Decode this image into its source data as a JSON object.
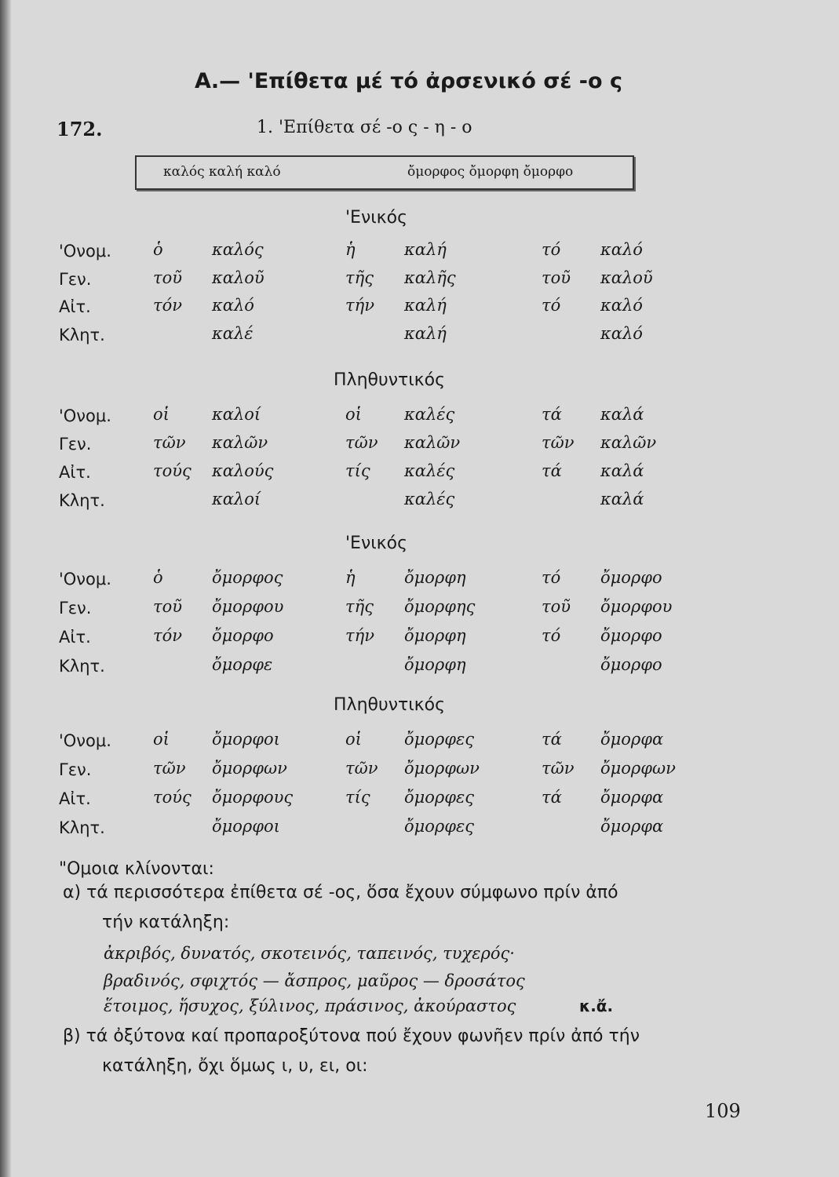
{
  "heading": "Α.— 'Επίθετα μέ τό ἀρσενικό σέ -ο ς",
  "section_number": "172.",
  "subheading": "1. 'Επίθετα σέ -ο ς - η - ο",
  "box": {
    "left": "καλός καλή καλό",
    "right": "ὄμορφος ὄμορφη ὄμορφο"
  },
  "case_labels": [
    "'Ονομ.",
    "Γεν.",
    "Αἰτ.",
    "Κλητ."
  ],
  "blocks": [
    {
      "heading": "'Ενικός",
      "rows": [
        [
          "ὁ",
          "καλός",
          "ἡ",
          "καλή",
          "τό",
          "καλό"
        ],
        [
          "τοῦ",
          "καλοῦ",
          "τῆς",
          "καλῆς",
          "τοῦ",
          "καλοῦ"
        ],
        [
          "τόν",
          "καλό",
          "τήν",
          "καλή",
          "τό",
          "καλό"
        ],
        [
          "",
          "καλέ",
          "",
          "καλή",
          "",
          "καλό"
        ]
      ]
    },
    {
      "heading": "Πληθυντικός",
      "rows": [
        [
          "οἱ",
          "καλοί",
          "οἱ",
          "καλές",
          "τά",
          "καλά"
        ],
        [
          "τῶν",
          "καλῶν",
          "τῶν",
          "καλῶν",
          "τῶν",
          "καλῶν"
        ],
        [
          "τούς",
          "καλούς",
          "τίς",
          "καλές",
          "τά",
          "καλά"
        ],
        [
          "",
          "καλοί",
          "",
          "καλές",
          "",
          "καλά"
        ]
      ]
    },
    {
      "heading": "'Ενικός",
      "rows": [
        [
          "ὁ",
          "ὄμορφος",
          "ἡ",
          "ὄμορφη",
          "τό",
          "ὄμορφο"
        ],
        [
          "τοῦ",
          "ὄμορφου",
          "τῆς",
          "ὄμορφης",
          "τοῦ",
          "ὄμορφου"
        ],
        [
          "τόν",
          "ὄμορφο",
          "τήν",
          "ὄμορφη",
          "τό",
          "ὄμορφο"
        ],
        [
          "",
          "ὄμορφε",
          "",
          "ὄμορφη",
          "",
          "ὄμορφο"
        ]
      ]
    },
    {
      "heading": "Πληθυντικός",
      "rows": [
        [
          "οἱ",
          "ὄμορφοι",
          "οἱ",
          "ὄμορφες",
          "τά",
          "ὄμορφα"
        ],
        [
          "τῶν",
          "ὄμορφων",
          "τῶν",
          "ὄμορφων",
          "τῶν",
          "ὄμορφων"
        ],
        [
          "τούς",
          "ὄμορφους",
          "τίς",
          "ὄμορφες",
          "τά",
          "ὄμορφα"
        ],
        [
          "",
          "ὄμορφοι",
          "",
          "ὄμορφες",
          "",
          "ὄμορφα"
        ]
      ]
    }
  ],
  "notes": {
    "intro": "\"Ομοια κλίνονται:",
    "a_line1": "α) τά περισσότερα ἐπίθετα σέ -ος, ὅσα ἔχουν σύμφωνο πρίν ἀπό",
    "a_line2": "τήν κατάληξη:",
    "a_ex1": "ἀκριβός, δυνατός, σκοτεινός, ταπεινός, τυχερός·",
    "a_ex2": "βραδινός, σφιχτός — ἄσπρος, μαῦρος — δροσάτος",
    "a_ex3": "ἕτοιμος, ἥσυχος, ξύλινος, πράσινος, ἀκούραστος",
    "a_ex3_tail": "κ.ἄ.",
    "b_line1": "β) τά ὀξύτονα καί προπαροξύτονα πού ἔχουν φωνῆεν πρίν ἀπό τήν",
    "b_line2": "κατάληξη, ὄχι ὅμως ι, υ, ει, οι:"
  },
  "page_number": "109"
}
